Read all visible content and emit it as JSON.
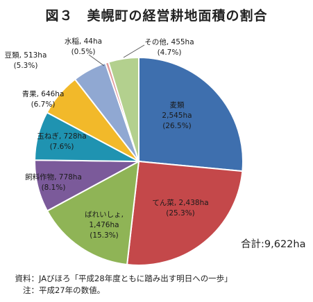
{
  "chart_data": {
    "type": "pie",
    "title": "図３　美幌町の経営耕地面積の割合",
    "slices": [
      {
        "label": "麦類",
        "area": "2,545ha",
        "pct": "26.5%",
        "value": 26.5,
        "color": "#3e6fae"
      },
      {
        "label": "てん菜",
        "area": "2,438ha",
        "pct": "25.3%",
        "value": 25.3,
        "color": "#c4484a"
      },
      {
        "label": "ばれいしょ",
        "area": "1,476ha",
        "pct": "15.3%",
        "value": 15.3,
        "color": "#8fb456"
      },
      {
        "label": "飼料作物",
        "area": "778ha",
        "pct": "8.1%",
        "value": 8.1,
        "color": "#7b5a9a"
      },
      {
        "label": "玉ねぎ",
        "area": "728ha",
        "pct": "7.6%",
        "value": 7.6,
        "color": "#1f93b1"
      },
      {
        "label": "青果",
        "area": "646ha",
        "pct": "6.7%",
        "value": 6.7,
        "color": "#f2b92a"
      },
      {
        "label": "豆類",
        "area": "513ha",
        "pct": "5.3%",
        "value": 5.3,
        "color": "#90a8d2"
      },
      {
        "label": "水稲",
        "area": "44ha",
        "pct": "0.5%",
        "value": 0.5,
        "color": "#e09a9a"
      },
      {
        "label": "その他",
        "area": "455ha",
        "pct": "4.7%",
        "value": 4.7,
        "color": "#b3d08e"
      }
    ],
    "total_label": "合計",
    "total_value": "9,622ha"
  },
  "notes": {
    "source_key": "資料：",
    "source_text": "JAびほろ「平成28年度ともに踏み出す明日への一歩」",
    "note_key": "注：",
    "note_text": "平成27年の数値。"
  }
}
